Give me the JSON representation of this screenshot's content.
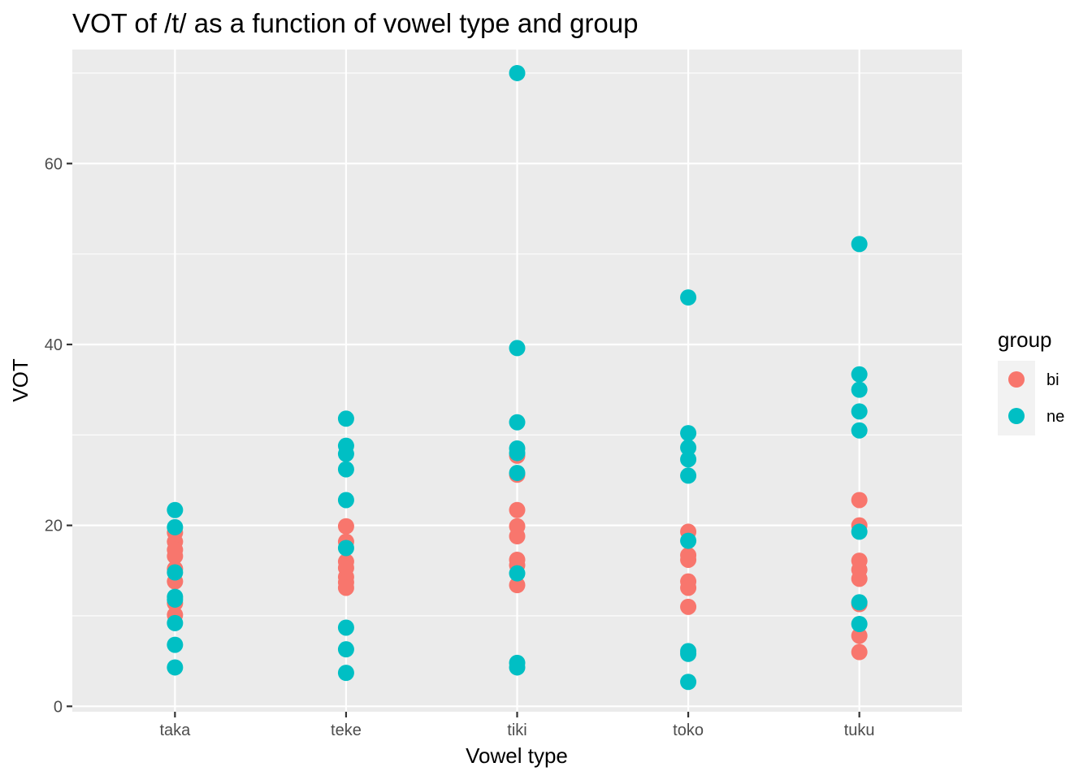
{
  "chart_data": {
    "type": "scatter",
    "title": "VOT of /t/ as a function of vowel type and group",
    "xlabel": "Vowel type",
    "ylabel": "VOT",
    "categories": [
      "taka",
      "teke",
      "tiki",
      "toko",
      "tuku"
    ],
    "ylim": [
      -0.6,
      72.6
    ],
    "yticks": [
      0,
      20,
      40,
      60
    ],
    "grid": true,
    "legend": {
      "title": "group",
      "position": "right"
    },
    "series": [
      {
        "name": "bi",
        "color": "#F8766D",
        "points": [
          {
            "x": "taka",
            "y": 19.2
          },
          {
            "x": "taka",
            "y": 18.2
          },
          {
            "x": "taka",
            "y": 17.3
          },
          {
            "x": "taka",
            "y": 16.6
          },
          {
            "x": "taka",
            "y": 15.2
          },
          {
            "x": "taka",
            "y": 13.8
          },
          {
            "x": "taka",
            "y": 11.4
          },
          {
            "x": "taka",
            "y": 10.1
          },
          {
            "x": "teke",
            "y": 19.9
          },
          {
            "x": "teke",
            "y": 18.2
          },
          {
            "x": "teke",
            "y": 16.0
          },
          {
            "x": "teke",
            "y": 15.3
          },
          {
            "x": "teke",
            "y": 14.3
          },
          {
            "x": "teke",
            "y": 13.7
          },
          {
            "x": "teke",
            "y": 13.1
          },
          {
            "x": "tiki",
            "y": 27.7
          },
          {
            "x": "tiki",
            "y": 25.6
          },
          {
            "x": "tiki",
            "y": 21.7
          },
          {
            "x": "tiki",
            "y": 19.9
          },
          {
            "x": "tiki",
            "y": 18.8
          },
          {
            "x": "tiki",
            "y": 16.2
          },
          {
            "x": "tiki",
            "y": 15.6
          },
          {
            "x": "tiki",
            "y": 13.4
          },
          {
            "x": "toko",
            "y": 19.3
          },
          {
            "x": "toko",
            "y": 16.7
          },
          {
            "x": "toko",
            "y": 16.2
          },
          {
            "x": "toko",
            "y": 13.8
          },
          {
            "x": "toko",
            "y": 13.1
          },
          {
            "x": "toko",
            "y": 11.0
          },
          {
            "x": "tuku",
            "y": 22.8
          },
          {
            "x": "tuku",
            "y": 20.0
          },
          {
            "x": "tuku",
            "y": 16.1
          },
          {
            "x": "tuku",
            "y": 15.1
          },
          {
            "x": "tuku",
            "y": 14.1
          },
          {
            "x": "tuku",
            "y": 11.3
          },
          {
            "x": "tuku",
            "y": 7.8
          },
          {
            "x": "tuku",
            "y": 6.0
          }
        ]
      },
      {
        "name": "ne",
        "color": "#00BFC4",
        "points": [
          {
            "x": "taka",
            "y": 21.7
          },
          {
            "x": "taka",
            "y": 19.8
          },
          {
            "x": "taka",
            "y": 14.8
          },
          {
            "x": "taka",
            "y": 12.1
          },
          {
            "x": "taka",
            "y": 11.8
          },
          {
            "x": "taka",
            "y": 9.2
          },
          {
            "x": "taka",
            "y": 6.8
          },
          {
            "x": "taka",
            "y": 4.3
          },
          {
            "x": "teke",
            "y": 31.8
          },
          {
            "x": "teke",
            "y": 28.8
          },
          {
            "x": "teke",
            "y": 27.9
          },
          {
            "x": "teke",
            "y": 26.2
          },
          {
            "x": "teke",
            "y": 22.8
          },
          {
            "x": "teke",
            "y": 17.5
          },
          {
            "x": "teke",
            "y": 8.7
          },
          {
            "x": "teke",
            "y": 6.3
          },
          {
            "x": "teke",
            "y": 3.7
          },
          {
            "x": "tiki",
            "y": 70.0
          },
          {
            "x": "tiki",
            "y": 39.6
          },
          {
            "x": "tiki",
            "y": 31.4
          },
          {
            "x": "tiki",
            "y": 28.5
          },
          {
            "x": "tiki",
            "y": 28.0
          },
          {
            "x": "tiki",
            "y": 25.8
          },
          {
            "x": "tiki",
            "y": 14.7
          },
          {
            "x": "tiki",
            "y": 4.8
          },
          {
            "x": "tiki",
            "y": 4.3
          },
          {
            "x": "toko",
            "y": 45.2
          },
          {
            "x": "toko",
            "y": 30.2
          },
          {
            "x": "toko",
            "y": 28.6
          },
          {
            "x": "toko",
            "y": 27.3
          },
          {
            "x": "toko",
            "y": 25.5
          },
          {
            "x": "toko",
            "y": 18.3
          },
          {
            "x": "toko",
            "y": 6.1
          },
          {
            "x": "toko",
            "y": 5.8
          },
          {
            "x": "toko",
            "y": 2.7
          },
          {
            "x": "tuku",
            "y": 51.1
          },
          {
            "x": "tuku",
            "y": 36.7
          },
          {
            "x": "tuku",
            "y": 35.0
          },
          {
            "x": "tuku",
            "y": 32.6
          },
          {
            "x": "tuku",
            "y": 30.5
          },
          {
            "x": "tuku",
            "y": 19.3
          },
          {
            "x": "tuku",
            "y": 11.5
          },
          {
            "x": "tuku",
            "y": 9.1
          }
        ]
      }
    ]
  }
}
